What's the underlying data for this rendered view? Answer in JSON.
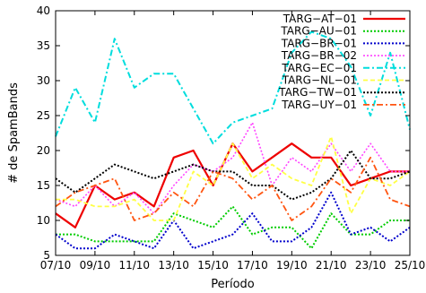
{
  "chart_data": {
    "type": "line",
    "title": "",
    "xlabel": "Período",
    "ylabel": "# de SpamBands",
    "ylim": [
      5,
      40
    ],
    "yticks": [
      5,
      10,
      15,
      20,
      25,
      30,
      35,
      40
    ],
    "x_tick_labels": [
      "07/10",
      "09/10",
      "11/10",
      "13/10",
      "15/10",
      "17/10",
      "19/10",
      "21/10",
      "23/10",
      "25/10"
    ],
    "x": [
      "07/10",
      "08/10",
      "09/10",
      "10/10",
      "11/10",
      "12/10",
      "13/10",
      "14/10",
      "15/10",
      "16/10",
      "17/10",
      "18/10",
      "19/10",
      "20/10",
      "21/10",
      "22/10",
      "23/10",
      "24/10",
      "25/10"
    ],
    "grid": false,
    "legend_position": "top-right",
    "series": [
      {
        "name": "TARG−AT−01",
        "color": "#ee0000",
        "dash": "solid",
        "width": 2.2,
        "values": [
          11,
          9,
          15,
          13,
          14,
          12,
          19,
          20,
          15,
          21,
          17,
          19,
          21,
          19,
          19,
          15,
          16,
          17,
          17
        ]
      },
      {
        "name": "TARG−AU−01",
        "color": "#00cc00",
        "dash": "dot",
        "width": 2.0,
        "values": [
          8,
          8,
          7,
          7,
          7,
          7,
          11,
          10,
          9,
          12,
          8,
          9,
          9,
          6,
          11,
          8,
          8,
          10,
          10
        ]
      },
      {
        "name": "TARG−BR−01",
        "color": "#0000cc",
        "dash": "dot",
        "width": 2.0,
        "values": [
          8,
          6,
          6,
          8,
          7,
          6,
          10,
          6,
          7,
          8,
          11,
          7,
          7,
          9,
          14,
          8,
          9,
          7,
          9
        ]
      },
      {
        "name": "TARG−BR−02",
        "color": "#ff44ff",
        "dash": "dot",
        "width": 1.6,
        "values": [
          13,
          12,
          15,
          12,
          14,
          11,
          15,
          18,
          17,
          19,
          24,
          15,
          19,
          17,
          21,
          17,
          21,
          17,
          17
        ]
      },
      {
        "name": "TARG−EC−01",
        "color": "#00dddd",
        "dash": "dashdot",
        "width": 2.0,
        "values": [
          22,
          29,
          24,
          36,
          29,
          31,
          31,
          26,
          21,
          24,
          25,
          26,
          34,
          37,
          36,
          32,
          25,
          34,
          23
        ]
      },
      {
        "name": "TARG−NL−01",
        "color": "#ffff44",
        "dash": "dash",
        "width": 1.8,
        "values": [
          13,
          13,
          12,
          12,
          13,
          10,
          10,
          17,
          15,
          21,
          16,
          18,
          16,
          15,
          22,
          11,
          16,
          15,
          17
        ]
      },
      {
        "name": "TARG−TW−01",
        "color": "#000000",
        "dash": "dot",
        "width": 2.0,
        "values": [
          16,
          14,
          16,
          18,
          17,
          16,
          17,
          18,
          17,
          17,
          15,
          15,
          13,
          14,
          16,
          20,
          16,
          16,
          17
        ]
      },
      {
        "name": "TARG−UY−01",
        "color": "#ff5511",
        "dash": "dashdot",
        "width": 1.8,
        "values": [
          12,
          14,
          15,
          16,
          10,
          11,
          14,
          12,
          17,
          16,
          13,
          15,
          10,
          12,
          16,
          14,
          19,
          13,
          12
        ]
      }
    ]
  }
}
